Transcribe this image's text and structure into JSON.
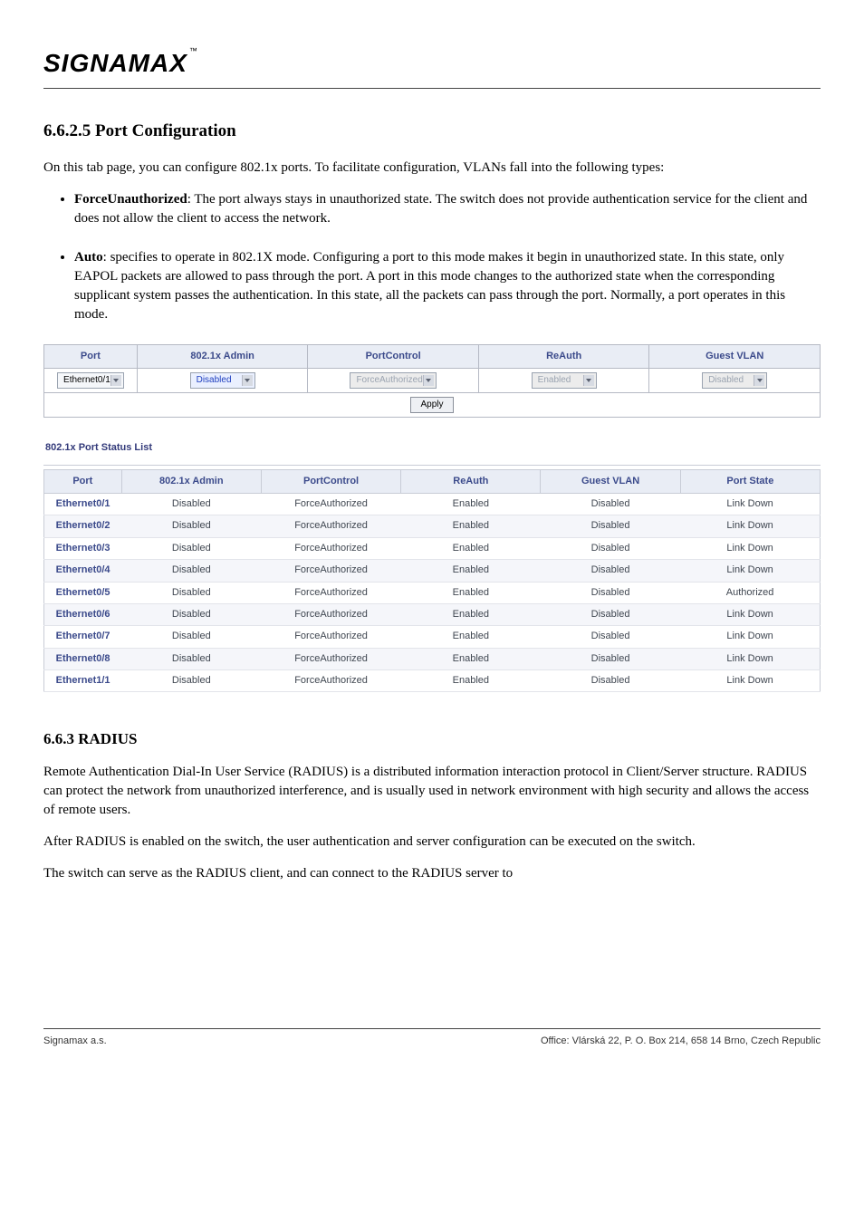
{
  "logo_text": "SIGNAMAX",
  "logo_tm": "™",
  "section_heading": "6.6.2.5   Port Configuration",
  "intro_para": "On this tab page, you can configure 802.1x ports. To facilitate configuration, VLANs fall into the following types:",
  "bullets": [
    {
      "label": "ForceUnauthorized",
      "text": ": The port always stays in unauthorized state. The switch does not provide authentication service for the client and does not allow the client to access the network."
    },
    {
      "label": "Auto",
      "text": ": specifies to operate in 802.1X mode. Configuring a port to this mode makes it begin in unauthorized state. In this state, only EAPOL packets are allowed to pass through the port. A port in this mode changes to the authorized state when the corresponding supplicant system passes the authentication. In this state, all the packets can pass through the port. Normally, a port operates in this mode."
    }
  ],
  "cfg_table": {
    "headers": [
      "Port",
      "802.1x Admin",
      "PortControl",
      "ReAuth",
      "Guest VLAN"
    ],
    "col_widths": [
      "12%",
      "22%",
      "22%",
      "22%",
      "22%"
    ],
    "row": {
      "port_options": "Ethernet0/1",
      "admin_value": "Disabled",
      "portcontrol_value": "ForceAuthorized",
      "reauth_value": "Enabled",
      "guestvlan_value": "Disabled"
    },
    "apply_label": "Apply"
  },
  "status_title": "802.1x Port Status List",
  "status_headers": [
    "Port",
    "802.1x Admin",
    "PortControl",
    "ReAuth",
    "Guest VLAN",
    "Port State"
  ],
  "status_col_widths": [
    "10%",
    "18%",
    "18%",
    "18%",
    "18%",
    "18%"
  ],
  "status_rows": [
    {
      "port": "Ethernet0/1",
      "admin": "Disabled",
      "pc": "ForceAuthorized",
      "ra": "Enabled",
      "gv": "Disabled",
      "ps": "Link Down"
    },
    {
      "port": "Ethernet0/2",
      "admin": "Disabled",
      "pc": "ForceAuthorized",
      "ra": "Enabled",
      "gv": "Disabled",
      "ps": "Link Down"
    },
    {
      "port": "Ethernet0/3",
      "admin": "Disabled",
      "pc": "ForceAuthorized",
      "ra": "Enabled",
      "gv": "Disabled",
      "ps": "Link Down"
    },
    {
      "port": "Ethernet0/4",
      "admin": "Disabled",
      "pc": "ForceAuthorized",
      "ra": "Enabled",
      "gv": "Disabled",
      "ps": "Link Down"
    },
    {
      "port": "Ethernet0/5",
      "admin": "Disabled",
      "pc": "ForceAuthorized",
      "ra": "Enabled",
      "gv": "Disabled",
      "ps": "Authorized"
    },
    {
      "port": "Ethernet0/6",
      "admin": "Disabled",
      "pc": "ForceAuthorized",
      "ra": "Enabled",
      "gv": "Disabled",
      "ps": "Link Down"
    },
    {
      "port": "Ethernet0/7",
      "admin": "Disabled",
      "pc": "ForceAuthorized",
      "ra": "Enabled",
      "gv": "Disabled",
      "ps": "Link Down"
    },
    {
      "port": "Ethernet0/8",
      "admin": "Disabled",
      "pc": "ForceAuthorized",
      "ra": "Enabled",
      "gv": "Disabled",
      "ps": "Link Down"
    },
    {
      "port": "Ethernet1/1",
      "admin": "Disabled",
      "pc": "ForceAuthorized",
      "ra": "Enabled",
      "gv": "Disabled",
      "ps": "Link Down"
    }
  ],
  "next_heading": "6.6.3    RADIUS",
  "next_body_1": "Remote Authentication Dial-In User Service (RADIUS) is a distributed information interaction protocol in Client/Server structure. RADIUS can protect the network from unauthorized interference, and is usually used in network environment with high security and allows the access of remote users.",
  "next_body_2": "After RADIUS is enabled on the switch, the user authentication and server configuration can be executed on the switch.",
  "next_body_3": "The switch can serve as the RADIUS client, and can connect to the RADIUS server to",
  "footer_left": "Signamax a.s.",
  "footer_right": "Office: Vlárská 22, P. O. Box 214, 658 14 Brno, Czech Republic"
}
